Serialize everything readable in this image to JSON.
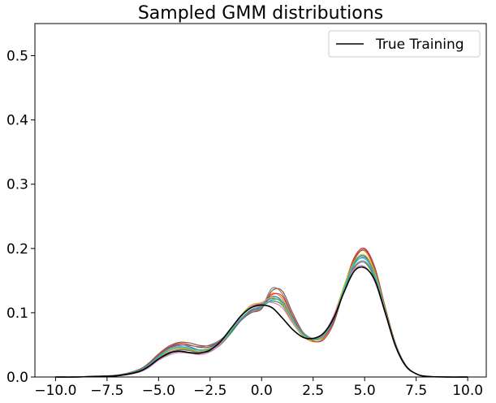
{
  "chart_data": {
    "type": "line",
    "title": "Sampled GMM distributions",
    "xlabel": "",
    "ylabel": "",
    "xlim": [
      -11,
      10.9
    ],
    "ylim": [
      0,
      0.55
    ],
    "xticks": [
      -10.0,
      -7.5,
      -5.0,
      -2.5,
      0.0,
      2.5,
      5.0,
      7.5,
      10.0
    ],
    "xtick_labels": [
      "−10.0",
      "−7.5",
      "−5.0",
      "−2.5",
      "0.0",
      "2.5",
      "5.0",
      "7.5",
      "10.0"
    ],
    "yticks": [
      0.0,
      0.1,
      0.2,
      0.3,
      0.4,
      0.5
    ],
    "ytick_labels": [
      "0.0",
      "0.1",
      "0.2",
      "0.3",
      "0.4",
      "0.5"
    ],
    "grid": false,
    "legend": {
      "position": "top-right",
      "entries": [
        "True Training"
      ]
    },
    "true_series": {
      "name": "True Training",
      "color": "#000000",
      "x": [
        -10,
        -9,
        -8,
        -7,
        -6,
        -5.5,
        -5,
        -4.5,
        -4,
        -3.5,
        -3,
        -2.5,
        -2,
        -1.5,
        -1,
        -0.5,
        0,
        0.5,
        1,
        1.5,
        2,
        2.5,
        3,
        3.5,
        4,
        4.5,
        5,
        5.5,
        6,
        6.5,
        7,
        7.5,
        8,
        9,
        10
      ],
      "y": [
        0,
        0,
        0.001,
        0.002,
        0.008,
        0.016,
        0.028,
        0.037,
        0.04,
        0.038,
        0.037,
        0.042,
        0.055,
        0.075,
        0.095,
        0.108,
        0.112,
        0.108,
        0.092,
        0.074,
        0.062,
        0.06,
        0.068,
        0.092,
        0.132,
        0.165,
        0.17,
        0.15,
        0.1,
        0.048,
        0.017,
        0.005,
        0.001,
        0,
        0
      ]
    },
    "sample_series_colors": [
      "#1f77b4",
      "#ff7f0e",
      "#2ca02c",
      "#d62728",
      "#9467bd",
      "#8c564b",
      "#e377c2",
      "#7f7f7f",
      "#bcbd22",
      "#17becf"
    ],
    "sample_series": [
      {
        "x": [
          -10,
          -9,
          -8,
          -7,
          -6,
          -5.5,
          -5,
          -4.5,
          -4,
          -3.5,
          -3,
          -2.5,
          -2,
          -1.5,
          -1,
          -0.5,
          0,
          0.5,
          1,
          1.5,
          2,
          2.5,
          3,
          3.5,
          4,
          4.5,
          5,
          5.5,
          6,
          6.5,
          7,
          7.5,
          8,
          9,
          10
        ],
        "y": [
          0,
          0,
          0.001,
          0.002,
          0.009,
          0.018,
          0.032,
          0.045,
          0.05,
          0.047,
          0.042,
          0.044,
          0.052,
          0.068,
          0.088,
          0.102,
          0.108,
          0.125,
          0.118,
          0.088,
          0.066,
          0.058,
          0.063,
          0.09,
          0.138,
          0.178,
          0.188,
          0.16,
          0.104,
          0.05,
          0.018,
          0.005,
          0.001,
          0,
          0
        ]
      },
      {
        "x": [
          -10,
          -9,
          -8,
          -7,
          -6,
          -5.5,
          -5,
          -4.5,
          -4,
          -3.5,
          -3,
          -2.5,
          -2,
          -1.5,
          -1,
          -0.5,
          0,
          0.5,
          1,
          1.5,
          2,
          2.5,
          3,
          3.5,
          4,
          4.5,
          5,
          5.5,
          6,
          6.5,
          7,
          7.5,
          8,
          9,
          10
        ],
        "y": [
          0,
          0,
          0.001,
          0.002,
          0.008,
          0.016,
          0.03,
          0.04,
          0.046,
          0.044,
          0.04,
          0.043,
          0.054,
          0.072,
          0.094,
          0.108,
          0.112,
          0.13,
          0.122,
          0.09,
          0.064,
          0.055,
          0.06,
          0.088,
          0.14,
          0.185,
          0.196,
          0.165,
          0.106,
          0.05,
          0.017,
          0.005,
          0.001,
          0,
          0
        ]
      },
      {
        "x": [
          -10,
          -9,
          -8,
          -7,
          -6,
          -5.5,
          -5,
          -4.5,
          -4,
          -3.5,
          -3,
          -2.5,
          -2,
          -1.5,
          -1,
          -0.5,
          0,
          0.5,
          1,
          1.5,
          2,
          2.5,
          3,
          3.5,
          4,
          4.5,
          5,
          5.5,
          6,
          6.5,
          7,
          7.5,
          8,
          9,
          10
        ],
        "y": [
          0,
          0,
          0.001,
          0.002,
          0.007,
          0.015,
          0.027,
          0.036,
          0.042,
          0.041,
          0.038,
          0.04,
          0.05,
          0.068,
          0.09,
          0.104,
          0.11,
          0.118,
          0.112,
          0.085,
          0.064,
          0.058,
          0.064,
          0.092,
          0.135,
          0.17,
          0.178,
          0.152,
          0.1,
          0.048,
          0.017,
          0.005,
          0.001,
          0,
          0
        ]
      },
      {
        "x": [
          -10,
          -9,
          -8,
          -7,
          -6,
          -5.5,
          -5,
          -4.5,
          -4,
          -3.5,
          -3,
          -2.5,
          -2,
          -1.5,
          -1,
          -0.5,
          0,
          0.5,
          1,
          1.5,
          2,
          2.5,
          3,
          3.5,
          4,
          4.5,
          5,
          5.5,
          6,
          6.5,
          7,
          7.5,
          8,
          9,
          10
        ],
        "y": [
          0,
          0,
          0.001,
          0.003,
          0.01,
          0.02,
          0.034,
          0.046,
          0.052,
          0.05,
          0.046,
          0.047,
          0.055,
          0.07,
          0.09,
          0.104,
          0.11,
          0.128,
          0.126,
          0.094,
          0.068,
          0.058,
          0.062,
          0.088,
          0.14,
          0.186,
          0.2,
          0.17,
          0.108,
          0.051,
          0.018,
          0.005,
          0.001,
          0,
          0
        ]
      },
      {
        "x": [
          -10,
          -9,
          -8,
          -7,
          -6,
          -5.5,
          -5,
          -4.5,
          -4,
          -3.5,
          -3,
          -2.5,
          -2,
          -1.5,
          -1,
          -0.5,
          0,
          0.5,
          1,
          1.5,
          2,
          2.5,
          3,
          3.5,
          4,
          4.5,
          5,
          5.5,
          6,
          6.5,
          7,
          7.5,
          8,
          9,
          10
        ],
        "y": [
          0,
          0,
          0.001,
          0.002,
          0.008,
          0.016,
          0.029,
          0.038,
          0.043,
          0.042,
          0.039,
          0.042,
          0.053,
          0.072,
          0.094,
          0.11,
          0.114,
          0.122,
          0.116,
          0.088,
          0.066,
          0.06,
          0.066,
          0.094,
          0.138,
          0.172,
          0.18,
          0.155,
          0.102,
          0.049,
          0.017,
          0.005,
          0.001,
          0,
          0
        ]
      },
      {
        "x": [
          -10,
          -9,
          -8,
          -7,
          -6,
          -5.5,
          -5,
          -4.5,
          -4,
          -3.5,
          -3,
          -2.5,
          -2,
          -1.5,
          -1,
          -0.5,
          0,
          0.5,
          1,
          1.5,
          2,
          2.5,
          3,
          3.5,
          4,
          4.5,
          5,
          5.5,
          6,
          6.5,
          7,
          7.5,
          8,
          9,
          10
        ],
        "y": [
          0,
          0,
          0.001,
          0.003,
          0.011,
          0.021,
          0.036,
          0.048,
          0.054,
          0.053,
          0.049,
          0.049,
          0.056,
          0.07,
          0.088,
          0.1,
          0.106,
          0.134,
          0.134,
          0.1,
          0.07,
          0.056,
          0.058,
          0.084,
          0.136,
          0.182,
          0.198,
          0.168,
          0.108,
          0.052,
          0.018,
          0.005,
          0.001,
          0,
          0
        ]
      },
      {
        "x": [
          -10,
          -9,
          -8,
          -7,
          -6,
          -5.5,
          -5,
          -4.5,
          -4,
          -3.5,
          -3,
          -2.5,
          -2,
          -1.5,
          -1,
          -0.5,
          0,
          0.5,
          1,
          1.5,
          2,
          2.5,
          3,
          3.5,
          4,
          4.5,
          5,
          5.5,
          6,
          6.5,
          7,
          7.5,
          8,
          9,
          10
        ],
        "y": [
          0,
          0,
          0.001,
          0.002,
          0.007,
          0.014,
          0.026,
          0.034,
          0.038,
          0.037,
          0.035,
          0.039,
          0.051,
          0.071,
          0.094,
          0.11,
          0.115,
          0.116,
          0.108,
          0.084,
          0.065,
          0.06,
          0.067,
          0.096,
          0.14,
          0.168,
          0.172,
          0.148,
          0.098,
          0.047,
          0.016,
          0.005,
          0.001,
          0,
          0
        ]
      },
      {
        "x": [
          -10,
          -9,
          -8,
          -7,
          -6,
          -5.5,
          -5,
          -4.5,
          -4,
          -3.5,
          -3,
          -2.5,
          -2,
          -1.5,
          -1,
          -0.5,
          0,
          0.5,
          1,
          1.5,
          2,
          2.5,
          3,
          3.5,
          4,
          4.5,
          5,
          5.5,
          6,
          6.5,
          7,
          7.5,
          8,
          9,
          10
        ],
        "y": [
          0,
          0,
          0.001,
          0.003,
          0.01,
          0.019,
          0.033,
          0.044,
          0.049,
          0.049,
          0.047,
          0.05,
          0.058,
          0.072,
          0.09,
          0.102,
          0.108,
          0.138,
          0.13,
          0.096,
          0.07,
          0.06,
          0.064,
          0.09,
          0.136,
          0.175,
          0.186,
          0.16,
          0.104,
          0.05,
          0.018,
          0.005,
          0.001,
          0,
          0
        ]
      },
      {
        "x": [
          -10,
          -9,
          -8,
          -7,
          -6,
          -5.5,
          -5,
          -4.5,
          -4,
          -3.5,
          -3,
          -2.5,
          -2,
          -1.5,
          -1,
          -0.5,
          0,
          0.5,
          1,
          1.5,
          2,
          2.5,
          3,
          3.5,
          4,
          4.5,
          5,
          5.5,
          6,
          6.5,
          7,
          7.5,
          8,
          9,
          10
        ],
        "y": [
          0,
          0,
          0.001,
          0.002,
          0.008,
          0.017,
          0.03,
          0.04,
          0.045,
          0.043,
          0.04,
          0.044,
          0.054,
          0.073,
          0.096,
          0.112,
          0.116,
          0.124,
          0.114,
          0.086,
          0.065,
          0.058,
          0.063,
          0.092,
          0.142,
          0.18,
          0.19,
          0.162,
          0.104,
          0.049,
          0.017,
          0.005,
          0.001,
          0,
          0
        ]
      },
      {
        "x": [
          -10,
          -9,
          -8,
          -7,
          -6,
          -5.5,
          -5,
          -4.5,
          -4,
          -3.5,
          -3,
          -2.5,
          -2,
          -1.5,
          -1,
          -0.5,
          0,
          0.5,
          1,
          1.5,
          2,
          2.5,
          3,
          3.5,
          4,
          4.5,
          5,
          5.5,
          6,
          6.5,
          7,
          7.5,
          8,
          9,
          10
        ],
        "y": [
          0,
          0,
          0.001,
          0.002,
          0.009,
          0.018,
          0.031,
          0.042,
          0.047,
          0.045,
          0.042,
          0.045,
          0.055,
          0.071,
          0.091,
          0.105,
          0.11,
          0.12,
          0.118,
          0.09,
          0.067,
          0.059,
          0.064,
          0.091,
          0.137,
          0.176,
          0.184,
          0.157,
          0.102,
          0.049,
          0.017,
          0.005,
          0.001,
          0,
          0
        ]
      }
    ]
  }
}
